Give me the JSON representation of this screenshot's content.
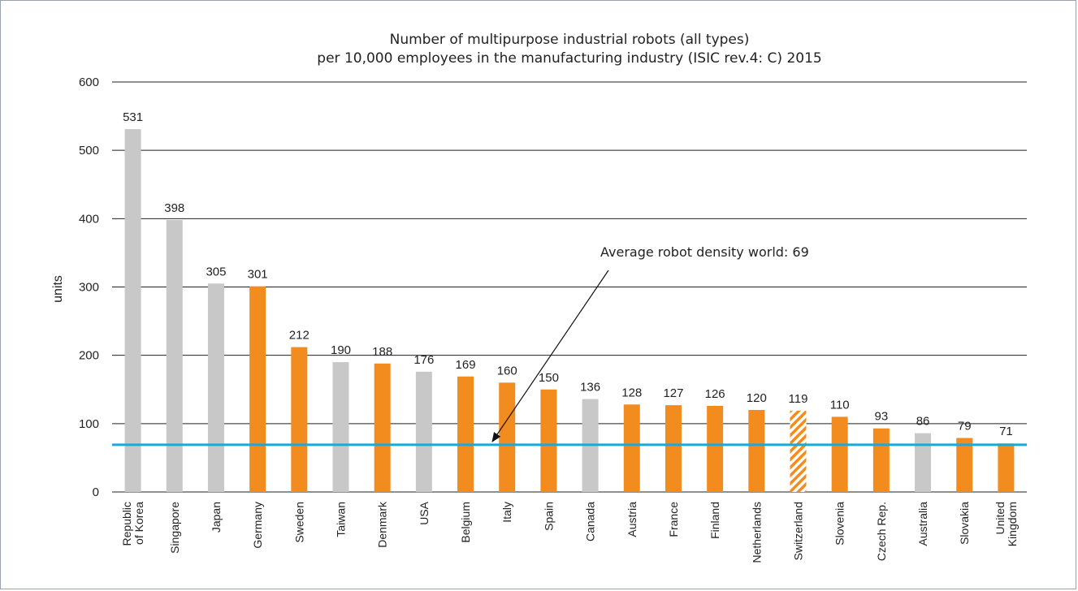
{
  "chart_data": {
    "type": "bar",
    "title_lines": [
      "Number of multipurpose industrial robots (all types)",
      "per 10,000 employees in the manufacturing industry (ISIC rev.4: C) 2015"
    ],
    "ylabel": "units",
    "xlabel": "",
    "ylim": [
      0,
      600
    ],
    "yticks": [
      0,
      100,
      200,
      300,
      400,
      500,
      600
    ],
    "grid": true,
    "categories": [
      [
        "Republic",
        "of Korea"
      ],
      [
        "Singapore"
      ],
      [
        "Japan"
      ],
      [
        "Germany"
      ],
      [
        "Sweden"
      ],
      [
        "Taiwan"
      ],
      [
        "Denmark"
      ],
      [
        "USA"
      ],
      [
        "Belgium"
      ],
      [
        "Italy"
      ],
      [
        "Spain"
      ],
      [
        "Canada"
      ],
      [
        "Austria"
      ],
      [
        "France"
      ],
      [
        "Finland"
      ],
      [
        "Netherlands"
      ],
      [
        "Switzerland"
      ],
      [
        "Slovenia"
      ],
      [
        "Czech Rep."
      ],
      [
        "Australia"
      ],
      [
        "Slovakia"
      ],
      [
        "United",
        "Kingdom"
      ]
    ],
    "values": [
      531,
      398,
      305,
      301,
      212,
      190,
      188,
      176,
      169,
      160,
      150,
      136,
      128,
      127,
      126,
      120,
      119,
      110,
      93,
      86,
      79,
      71
    ],
    "bar_style": [
      "grey",
      "grey",
      "grey",
      "orange",
      "orange",
      "grey",
      "orange",
      "grey",
      "orange",
      "orange",
      "orange",
      "grey",
      "orange",
      "orange",
      "orange",
      "orange",
      "hatched",
      "orange",
      "orange",
      "grey",
      "orange",
      "orange"
    ],
    "colors": {
      "orange": "#f28c1e",
      "grey": "#c8c8c8",
      "reference_line": "#1ea7d6"
    },
    "reference_line": {
      "value": 69,
      "label": "Average robot density world: 69"
    }
  }
}
